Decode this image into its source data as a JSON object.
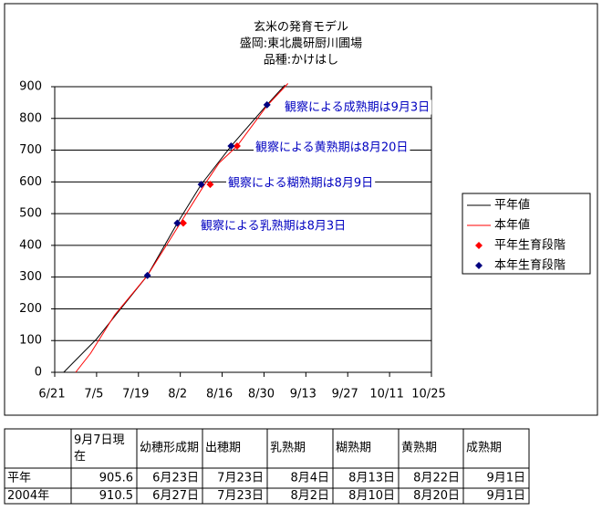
{
  "chart_data": {
    "type": "line",
    "title": [
      "玄米の発育モデル",
      "盛岡:東北農研厨川圃場",
      "品種:かけはし"
    ],
    "annotations": [
      "観察による成熟期は9月3日",
      "観察による黄熟期は8月20日",
      "観察による糊熟期は8月9日",
      "観察による乳熟期は8月3日"
    ],
    "xlim": [
      "6/21",
      "10/25"
    ],
    "xticks": [
      "6/21",
      "7/5",
      "7/19",
      "8/2",
      "8/16",
      "8/30",
      "9/13",
      "9/27",
      "10/11",
      "10/25"
    ],
    "ylim": [
      0,
      900
    ],
    "yticks": [
      0,
      100,
      200,
      300,
      400,
      500,
      600,
      700,
      800,
      900
    ],
    "grid": true,
    "legend": "right",
    "series": [
      {
        "name": "平年値",
        "color": "#000000",
        "kind": "line",
        "x": [
          "6/24",
          "7/5",
          "7/22",
          "8/1",
          "8/9",
          "8/19",
          "8/31",
          "9/6"
        ],
        "values": [
          0,
          105,
          305,
          470,
          592,
          713,
          843,
          905
        ]
      },
      {
        "name": "本年値",
        "color": "#ff0000",
        "kind": "line",
        "x": [
          "6/28",
          "7/3",
          "7/11",
          "7/22",
          "8/2",
          "8/10",
          "8/15",
          "8/21",
          "8/31",
          "9/7"
        ],
        "values": [
          0,
          60,
          180,
          305,
          470,
          590,
          660,
          713,
          840,
          910
        ]
      },
      {
        "name": "平年生育段階",
        "color": "#ff0000",
        "kind": "point",
        "x": [
          "8/3",
          "8/12",
          "8/21"
        ],
        "values": [
          470,
          592,
          713
        ]
      },
      {
        "name": "本年生育段階",
        "color": "#000080",
        "kind": "point",
        "x": [
          "7/22",
          "8/1",
          "8/9",
          "8/19",
          "8/31"
        ],
        "values": [
          305,
          470,
          592,
          713,
          843
        ]
      }
    ]
  },
  "table": {
    "header": [
      "9月7日現在",
      "幼穂形成期",
      "出穂期",
      "乳熟期",
      "糊熟期",
      "黄熟期",
      "成熟期"
    ],
    "rows": [
      [
        "平年",
        "905.6",
        "6月23日",
        "7月23日",
        "8月4日",
        "8月13日",
        "8月22日",
        "9月1日"
      ],
      [
        "2004年",
        "910.5",
        "6月27日",
        "7月23日",
        "8月2日",
        "8月10日",
        "8月20日",
        "9月1日"
      ]
    ]
  }
}
